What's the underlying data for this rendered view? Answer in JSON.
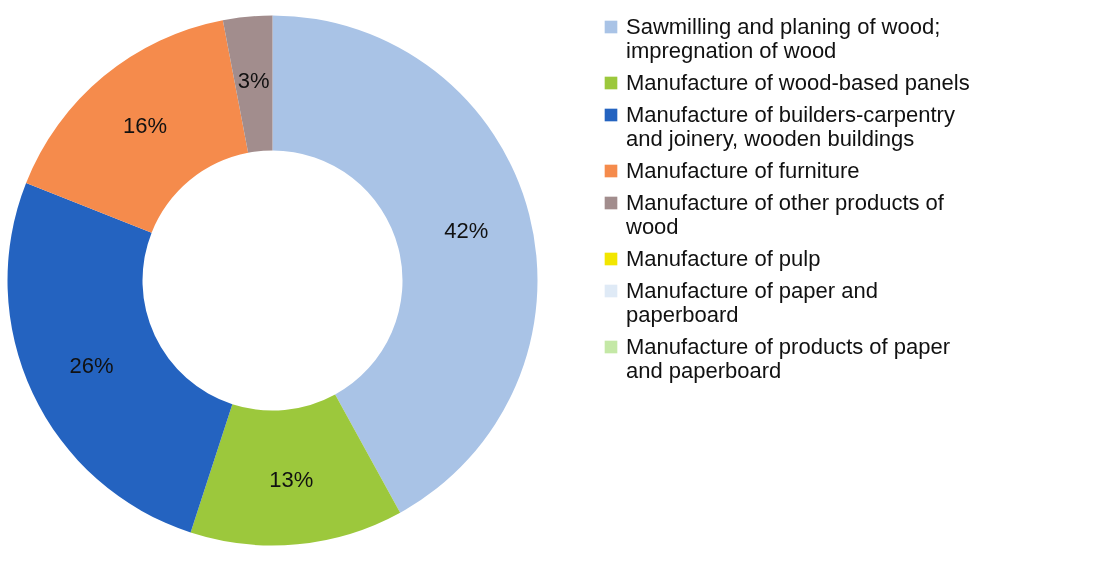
{
  "chart_data": {
    "type": "donut",
    "categories": [
      "Sawmilling and planing of wood; impregnation of wood",
      "Manufacture of wood-based panels",
      "Manufacture of builders-carpentry and joinery, wooden buildings",
      "Manufacture of furniture",
      "Manufacture of other products of wood",
      "Manufacture of pulp",
      "Manufacture of paper and paperboard",
      "Manufacture of products of paper and paperboard"
    ],
    "values": [
      42,
      13,
      26,
      16,
      3,
      0,
      0,
      0
    ],
    "value_labels": [
      "42%",
      "13%",
      "26%",
      "16%",
      "3%",
      null,
      null,
      null
    ],
    "colors": [
      "#a9c3e6",
      "#9cc83c",
      "#2463c0",
      "#f58b4c",
      "#a28d8d",
      "#f2e600",
      "#dfeaf6",
      "#c4e8a6"
    ],
    "legend": "right"
  }
}
